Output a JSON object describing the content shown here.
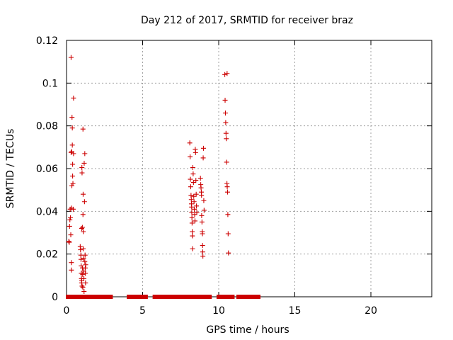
{
  "chart_data": {
    "type": "scatter",
    "title": "Day 212 of 2017, SRMTID for receiver braz",
    "xlabel": "GPS time / hours",
    "ylabel": "SRMTID / TECUs",
    "xlim": [
      0,
      24
    ],
    "ylim": [
      0,
      0.12
    ],
    "x_ticks": [
      0,
      5,
      10,
      15,
      20
    ],
    "x_tick_labels": [
      "0",
      "5",
      "10",
      "15",
      "20"
    ],
    "y_ticks": [
      0,
      0.02,
      0.04,
      0.06,
      0.08,
      0.1,
      0.12
    ],
    "y_tick_labels": [
      "0",
      "0.02",
      "0.04",
      "0.06",
      "0.08",
      "0.1",
      "0.12"
    ],
    "grid": true,
    "marker": "+",
    "color": "#cc0000",
    "series": [
      {
        "name": "braz",
        "points": [
          [
            0.15,
            0.026
          ],
          [
            0.18,
            0.0255
          ],
          [
            0.2,
            0.033
          ],
          [
            0.22,
            0.036
          ],
          [
            0.24,
            0.041
          ],
          [
            0.26,
            0.037
          ],
          [
            0.28,
            0.029
          ],
          [
            0.3,
            0.0675
          ],
          [
            0.3,
            0.112
          ],
          [
            0.32,
            0.016
          ],
          [
            0.32,
            0.0125
          ],
          [
            0.33,
            0.0415
          ],
          [
            0.34,
            0.068
          ],
          [
            0.35,
            0.052
          ],
          [
            0.36,
            0.084
          ],
          [
            0.38,
            0.079
          ],
          [
            0.38,
            0.071
          ],
          [
            0.4,
            0.062
          ],
          [
            0.4,
            0.0565
          ],
          [
            0.42,
            0.053
          ],
          [
            0.44,
            0.041
          ],
          [
            0.46,
            0.093
          ],
          [
            0.46,
            0.067
          ],
          [
            0.9,
            0.0235
          ],
          [
            0.92,
            0.022
          ],
          [
            0.94,
            0.0195
          ],
          [
            0.95,
            0.0175
          ],
          [
            0.96,
            0.0145
          ],
          [
            0.97,
            0.011
          ],
          [
            0.98,
            0.0085
          ],
          [
            0.99,
            0.0065
          ],
          [
            1.0,
            0.032
          ],
          [
            1.0,
            0.0075
          ],
          [
            1.01,
            0.0605
          ],
          [
            1.02,
            0.058
          ],
          [
            1.02,
            0.005
          ],
          [
            1.04,
            0.0325
          ],
          [
            1.05,
            0.0135
          ],
          [
            1.06,
            0.0105
          ],
          [
            1.07,
            0.0045
          ],
          [
            1.08,
            0.0785
          ],
          [
            1.08,
            0.0385
          ],
          [
            1.09,
            0.048
          ],
          [
            1.1,
            0.0305
          ],
          [
            1.1,
            0.0225
          ],
          [
            1.12,
            0.018
          ],
          [
            1.13,
            0.012
          ],
          [
            1.14,
            0.0085
          ],
          [
            1.15,
            0.0025
          ],
          [
            1.16,
            0.0625
          ],
          [
            1.18,
            0.0445
          ],
          [
            1.2,
            0.067
          ],
          [
            1.2,
            0.0165
          ],
          [
            1.22,
            0.0195
          ],
          [
            1.23,
            0.0135
          ],
          [
            1.24,
            0.011
          ],
          [
            1.25,
            0.0065
          ],
          [
            1.26,
            0.015
          ],
          [
            8.1,
            0.072
          ],
          [
            8.12,
            0.0655
          ],
          [
            8.14,
            0.055
          ],
          [
            8.16,
            0.0515
          ],
          [
            8.18,
            0.0475
          ],
          [
            8.2,
            0.0455
          ],
          [
            8.21,
            0.0435
          ],
          [
            8.22,
            0.042
          ],
          [
            8.23,
            0.0395
          ],
          [
            8.24,
            0.037
          ],
          [
            8.25,
            0.0345
          ],
          [
            8.26,
            0.0305
          ],
          [
            8.27,
            0.0285
          ],
          [
            8.28,
            0.0225
          ],
          [
            8.3,
            0.0605
          ],
          [
            8.32,
            0.0575
          ],
          [
            8.34,
            0.0535
          ],
          [
            8.36,
            0.047
          ],
          [
            8.38,
            0.0445
          ],
          [
            8.4,
            0.041
          ],
          [
            8.42,
            0.0385
          ],
          [
            8.44,
            0.0355
          ],
          [
            8.46,
            0.069
          ],
          [
            8.48,
            0.0675
          ],
          [
            8.5,
            0.0545
          ],
          [
            8.52,
            0.048
          ],
          [
            8.54,
            0.0425
          ],
          [
            8.56,
            0.0395
          ],
          [
            8.8,
            0.0555
          ],
          [
            8.82,
            0.0525
          ],
          [
            8.84,
            0.051
          ],
          [
            8.86,
            0.049
          ],
          [
            8.87,
            0.0475
          ],
          [
            8.88,
            0.038
          ],
          [
            8.9,
            0.035
          ],
          [
            8.92,
            0.0305
          ],
          [
            8.93,
            0.0295
          ],
          [
            8.94,
            0.024
          ],
          [
            8.95,
            0.021
          ],
          [
            8.96,
            0.019
          ],
          [
            8.98,
            0.065
          ],
          [
            9.0,
            0.0695
          ],
          [
            9.02,
            0.045
          ],
          [
            9.04,
            0.0405
          ],
          [
            10.4,
            0.104
          ],
          [
            10.42,
            0.092
          ],
          [
            10.44,
            0.086
          ],
          [
            10.46,
            0.0815
          ],
          [
            10.48,
            0.0765
          ],
          [
            10.5,
            0.074
          ],
          [
            10.52,
            0.063
          ],
          [
            10.54,
            0.053
          ],
          [
            10.56,
            0.0515
          ],
          [
            10.58,
            0.049
          ],
          [
            10.6,
            0.0385
          ],
          [
            10.62,
            0.0295
          ],
          [
            10.64,
            0.0205
          ],
          [
            10.55,
            0.1045
          ],
          [
            0.05,
            0
          ],
          [
            0.15,
            0
          ],
          [
            0.25,
            0
          ],
          [
            0.35,
            0
          ],
          [
            0.45,
            0
          ],
          [
            0.55,
            0
          ],
          [
            0.65,
            0
          ],
          [
            0.75,
            0
          ],
          [
            0.85,
            0
          ],
          [
            0.95,
            0
          ],
          [
            1.05,
            0
          ],
          [
            1.15,
            0
          ],
          [
            1.25,
            0
          ],
          [
            1.35,
            0
          ],
          [
            1.45,
            0
          ],
          [
            1.55,
            0
          ],
          [
            1.65,
            0
          ],
          [
            1.75,
            0
          ],
          [
            1.85,
            0
          ],
          [
            1.95,
            0
          ],
          [
            2.05,
            0
          ],
          [
            2.15,
            0
          ],
          [
            2.25,
            0
          ],
          [
            2.35,
            0
          ],
          [
            2.45,
            0
          ],
          [
            2.55,
            0
          ],
          [
            2.65,
            0
          ],
          [
            2.75,
            0
          ],
          [
            2.85,
            0
          ],
          [
            2.95,
            0
          ],
          [
            4.05,
            0
          ],
          [
            4.15,
            0
          ],
          [
            4.25,
            0
          ],
          [
            4.35,
            0
          ],
          [
            4.45,
            0
          ],
          [
            4.55,
            0
          ],
          [
            4.65,
            0
          ],
          [
            4.75,
            0
          ],
          [
            4.85,
            0
          ],
          [
            4.95,
            0
          ],
          [
            5.05,
            0
          ],
          [
            5.15,
            0
          ],
          [
            5.25,
            0
          ],
          [
            5.75,
            0
          ],
          [
            5.85,
            0
          ],
          [
            5.95,
            0
          ],
          [
            6.05,
            0
          ],
          [
            6.15,
            0
          ],
          [
            6.25,
            0
          ],
          [
            6.35,
            0
          ],
          [
            6.45,
            0
          ],
          [
            6.55,
            0
          ],
          [
            6.65,
            0
          ],
          [
            6.75,
            0
          ],
          [
            6.85,
            0
          ],
          [
            6.95,
            0
          ],
          [
            7.05,
            0
          ],
          [
            7.15,
            0
          ],
          [
            7.25,
            0
          ],
          [
            7.35,
            0
          ],
          [
            7.45,
            0
          ],
          [
            7.55,
            0
          ],
          [
            7.65,
            0
          ],
          [
            7.75,
            0
          ],
          [
            7.85,
            0
          ],
          [
            7.95,
            0
          ],
          [
            8.05,
            0
          ],
          [
            8.15,
            0
          ],
          [
            8.25,
            0
          ],
          [
            8.35,
            0
          ],
          [
            8.45,
            0
          ],
          [
            8.55,
            0
          ],
          [
            8.65,
            0
          ],
          [
            8.75,
            0
          ],
          [
            8.85,
            0
          ],
          [
            8.95,
            0
          ],
          [
            9.05,
            0
          ],
          [
            9.15,
            0
          ],
          [
            9.25,
            0
          ],
          [
            9.35,
            0
          ],
          [
            9.45,
            0
          ],
          [
            9.95,
            0
          ],
          [
            10.05,
            0
          ],
          [
            10.15,
            0
          ],
          [
            10.25,
            0
          ],
          [
            10.35,
            0
          ],
          [
            10.45,
            0
          ],
          [
            10.55,
            0
          ],
          [
            10.65,
            0
          ],
          [
            10.75,
            0
          ],
          [
            10.85,
            0
          ],
          [
            10.95,
            0
          ],
          [
            11.25,
            0
          ],
          [
            11.35,
            0
          ],
          [
            11.45,
            0
          ],
          [
            11.55,
            0
          ],
          [
            11.65,
            0
          ],
          [
            11.75,
            0
          ],
          [
            11.85,
            0
          ],
          [
            11.95,
            0
          ],
          [
            12.05,
            0
          ],
          [
            12.15,
            0
          ],
          [
            12.25,
            0
          ],
          [
            12.35,
            0
          ],
          [
            12.45,
            0
          ],
          [
            12.55,
            0
          ],
          [
            12.65,
            0
          ]
        ]
      }
    ]
  }
}
